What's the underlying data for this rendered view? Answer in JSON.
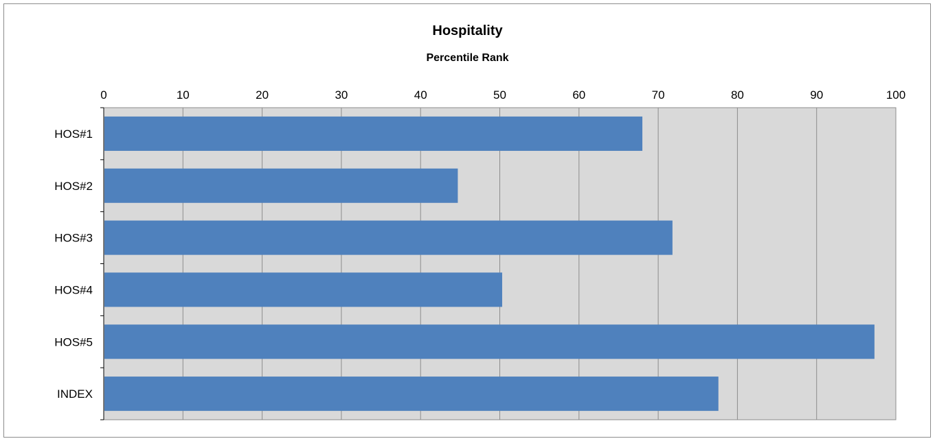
{
  "chart_data": {
    "type": "bar",
    "orientation": "horizontal",
    "title": "Hospitality",
    "subtitle": "Percentile Rank",
    "categories": [
      "HOS#1",
      "HOS#2",
      "HOS#3",
      "HOS#4",
      "HOS#5",
      "INDEX"
    ],
    "values": [
      68,
      44.7,
      71.8,
      50.3,
      97.3,
      77.6
    ],
    "xlim": [
      0,
      100
    ],
    "x_ticks": [
      "0",
      "10",
      "20",
      "30",
      "40",
      "50",
      "60",
      "70",
      "80",
      "90",
      "100"
    ],
    "x_axis_position": "top",
    "grid": true,
    "legend": "none",
    "colors": {
      "bar": "#4f81bd",
      "plot_background": "#d9d9d9",
      "gridline": "#8c8c8c"
    }
  }
}
